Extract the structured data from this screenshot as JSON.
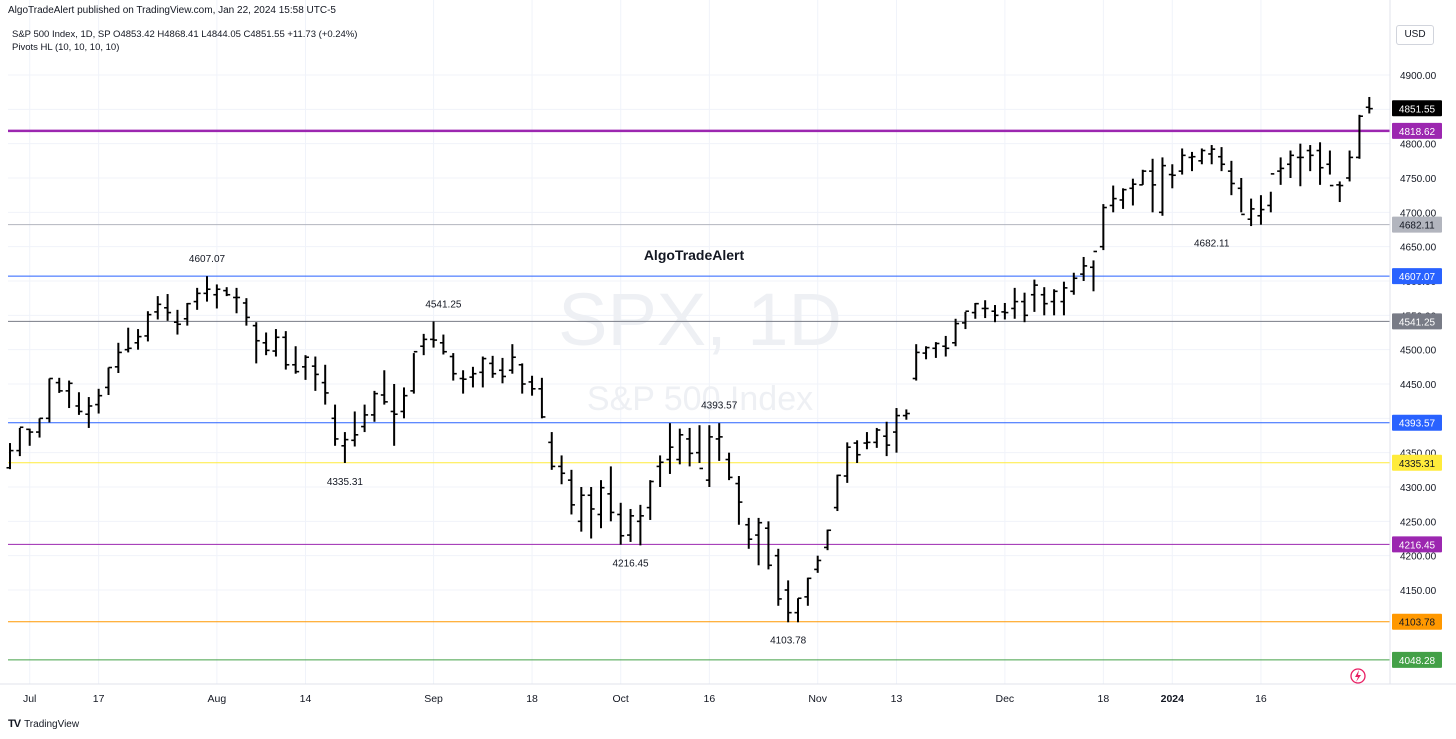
{
  "header": {
    "published": "AlgoTradeAlert published on TradingView.com, Jan 22, 2024 15:58 UTC-5"
  },
  "legend": {
    "symbol_line": "S&P 500 Index, 1D, SP  O4853.42  H4868.41  L4844.05  C4851.55  +11.73 (+0.24%)",
    "indicator_line": "Pivots HL (10, 10, 10, 10)"
  },
  "currency_button": "USD",
  "footer": {
    "brand": "TradingView"
  },
  "chart_data": {
    "type": "ohlc",
    "title": "AlgoTradeAlert",
    "watermark_symbol": "SPX, 1D",
    "watermark_name": "S&P 500 Index",
    "ylim": [
      4020,
      4960
    ],
    "y_ticks": [
      4150,
      4200,
      4250,
      4300,
      4350,
      4400,
      4450,
      4500,
      4550,
      4600,
      4650,
      4700,
      4750,
      4800,
      4850,
      4900
    ],
    "x_ticks": [
      {
        "label": "Jul",
        "index": 2
      },
      {
        "label": "17",
        "index": 9
      },
      {
        "label": "Aug",
        "index": 21
      },
      {
        "label": "14",
        "index": 30
      },
      {
        "label": "Sep",
        "index": 43
      },
      {
        "label": "18",
        "index": 53
      },
      {
        "label": "Oct",
        "index": 62
      },
      {
        "label": "16",
        "index": 71
      },
      {
        "label": "Nov",
        "index": 82
      },
      {
        "label": "13",
        "index": 90
      },
      {
        "label": "Dec",
        "index": 101
      },
      {
        "label": "18",
        "index": 111
      },
      {
        "label": "2024",
        "index": 118,
        "bold": true
      },
      {
        "label": "16",
        "index": 127
      }
    ],
    "levels": [
      {
        "value": 4818.62,
        "label": "4818.62",
        "color": "#9c27b0",
        "width": 2.5
      },
      {
        "value": 4682.11,
        "label": "4682.11",
        "color": "#b2b5be",
        "width": 1
      },
      {
        "value": 4607.07,
        "label": "4607.07",
        "color": "#2962ff",
        "width": 1
      },
      {
        "value": 4541.25,
        "label": "4541.25",
        "color": "#787b86",
        "width": 1
      },
      {
        "value": 4393.57,
        "label": "4393.57",
        "color": "#2962ff",
        "width": 1
      },
      {
        "value": 4335.31,
        "label": "4335.31",
        "color": "#ffeb3b",
        "width": 1
      },
      {
        "value": 4216.45,
        "label": "4216.45",
        "color": "#9c27b0",
        "width": 1
      },
      {
        "value": 4103.78,
        "label": "4103.78",
        "color": "#ff9800",
        "width": 1
      },
      {
        "value": 4048.28,
        "label": "4048.28",
        "color": "#43a047",
        "width": 1
      }
    ],
    "last_price": {
      "value": 4851.55,
      "label": "4851.55",
      "color": "#000000"
    },
    "pivot_labels": [
      {
        "label": "4607.07",
        "index": 20,
        "value": 4607.07,
        "pos": "above"
      },
      {
        "label": "4541.25",
        "index": 44,
        "value": 4541.25,
        "pos": "above"
      },
      {
        "label": "4335.31",
        "index": 34,
        "value": 4335.31,
        "pos": "below"
      },
      {
        "label": "4393.57",
        "index": 72,
        "value": 4393.57,
        "pos": "above"
      },
      {
        "label": "4216.45",
        "index": 63,
        "value": 4216.45,
        "pos": "below"
      },
      {
        "label": "4103.78",
        "index": 79,
        "value": 4103.78,
        "pos": "below"
      },
      {
        "label": "4682.11",
        "index": 122,
        "value": 4682.11,
        "pos": "below"
      }
    ],
    "colors": {
      "bar": "#000000",
      "grid": "#f0f3fa",
      "axis_text": "#131722"
    },
    "bars": [
      [
        4328,
        4364,
        4326,
        4353
      ],
      [
        4353,
        4386,
        4345,
        4387
      ],
      [
        4384,
        4385,
        4360,
        4380
      ],
      [
        4380,
        4400,
        4372,
        4400
      ],
      [
        4400,
        4458,
        4394,
        4458
      ],
      [
        4452,
        4459,
        4437,
        4440
      ],
      [
        4440,
        4455,
        4415,
        4451
      ],
      [
        4418,
        4438,
        4405,
        4410
      ],
      [
        4406,
        4431,
        4386,
        4418
      ],
      [
        4420,
        4443,
        4407,
        4433
      ],
      [
        4445,
        4474,
        4434,
        4474
      ],
      [
        4475,
        4510,
        4466,
        4496
      ],
      [
        4500,
        4532,
        4496,
        4502
      ],
      [
        4510,
        4530,
        4500,
        4519
      ],
      [
        4520,
        4556,
        4512,
        4551
      ],
      [
        4555,
        4578,
        4544,
        4566
      ],
      [
        4561,
        4581,
        4542,
        4554
      ],
      [
        4540,
        4558,
        4522,
        4537
      ],
      [
        4545,
        4568,
        4535,
        4567
      ],
      [
        4570,
        4590,
        4558,
        4582
      ],
      [
        4582,
        4607,
        4570,
        4588
      ],
      [
        4580,
        4595,
        4560,
        4588
      ],
      [
        4586,
        4591,
        4578,
        4580
      ],
      [
        4576,
        4590,
        4553,
        4576
      ],
      [
        4568,
        4575,
        4535,
        4547
      ],
      [
        4535,
        4540,
        4480,
        4513
      ],
      [
        4510,
        4525,
        4492,
        4499
      ],
      [
        4498,
        4530,
        4490,
        4518
      ],
      [
        4518,
        4527,
        4471,
        4478
      ],
      [
        4478,
        4505,
        4465,
        4468
      ],
      [
        4475,
        4492,
        4456,
        4489
      ],
      [
        4476,
        4490,
        4440,
        4464
      ],
      [
        4452,
        4478,
        4420,
        4437
      ],
      [
        4400,
        4420,
        4360,
        4370
      ],
      [
        4360,
        4380,
        4335,
        4369
      ],
      [
        4368,
        4410,
        4359,
        4376
      ],
      [
        4388,
        4420,
        4380,
        4405
      ],
      [
        4405,
        4440,
        4395,
        4436
      ],
      [
        4434,
        4470,
        4420,
        4424
      ],
      [
        4410,
        4450,
        4360,
        4406
      ],
      [
        4410,
        4445,
        4400,
        4433
      ],
      [
        4440,
        4495,
        4436,
        4497
      ],
      [
        4505,
        4523,
        4492,
        4515
      ],
      [
        4515,
        4541,
        4503,
        4514
      ],
      [
        4510,
        4522,
        4493,
        4497
      ],
      [
        4490,
        4495,
        4455,
        4465
      ],
      [
        4458,
        4470,
        4436,
        4457
      ],
      [
        4460,
        4475,
        4445,
        4465
      ],
      [
        4467,
        4490,
        4445,
        4487
      ],
      [
        4480,
        4491,
        4459,
        4465
      ],
      [
        4470,
        4488,
        4451,
        4461
      ],
      [
        4470,
        4508,
        4465,
        4489
      ],
      [
        4478,
        4480,
        4436,
        4450
      ],
      [
        4453,
        4462,
        4433,
        4443
      ],
      [
        4443,
        4459,
        4400,
        4402
      ],
      [
        4365,
        4380,
        4325,
        4330
      ],
      [
        4330,
        4346,
        4304,
        4320
      ],
      [
        4310,
        4325,
        4260,
        4274
      ],
      [
        4250,
        4300,
        4235,
        4288
      ],
      [
        4288,
        4300,
        4225,
        4268
      ],
      [
        4260,
        4310,
        4240,
        4299
      ],
      [
        4290,
        4330,
        4250,
        4263
      ],
      [
        4260,
        4277,
        4216,
        4229
      ],
      [
        4230,
        4268,
        4220,
        4258
      ],
      [
        4250,
        4274,
        4215,
        4258
      ],
      [
        4270,
        4310,
        4252,
        4308
      ],
      [
        4330,
        4346,
        4300,
        4336
      ],
      [
        4340,
        4393,
        4319,
        4358
      ],
      [
        4340,
        4385,
        4333,
        4376
      ],
      [
        4370,
        4386,
        4330,
        4349
      ],
      [
        4350,
        4390,
        4335,
        4327
      ],
      [
        4310,
        4390,
        4300,
        4373
      ],
      [
        4370,
        4393,
        4338,
        4373
      ],
      [
        4340,
        4350,
        4310,
        4314
      ],
      [
        4305,
        4316,
        4245,
        4278
      ],
      [
        4245,
        4255,
        4210,
        4224
      ],
      [
        4230,
        4255,
        4186,
        4248
      ],
      [
        4240,
        4250,
        4180,
        4186
      ],
      [
        4200,
        4210,
        4127,
        4137
      ],
      [
        4150,
        4164,
        4103,
        4117
      ],
      [
        4117,
        4138,
        4103,
        4138
      ],
      [
        4140,
        4168,
        4127,
        4167
      ],
      [
        4180,
        4200,
        4175,
        4193
      ],
      [
        4212,
        4238,
        4208,
        4237
      ],
      [
        4270,
        4318,
        4265,
        4317
      ],
      [
        4316,
        4365,
        4306,
        4358
      ],
      [
        4364,
        4368,
        4335,
        4347
      ],
      [
        4364,
        4380,
        4355,
        4365
      ],
      [
        4365,
        4386,
        4357,
        4383
      ],
      [
        4374,
        4395,
        4345,
        4361
      ],
      [
        4380,
        4415,
        4350,
        4404
      ],
      [
        4404,
        4413,
        4398,
        4407
      ],
      [
        4458,
        4508,
        4455,
        4496
      ],
      [
        4495,
        4505,
        4486,
        4503
      ],
      [
        4502,
        4511,
        4488,
        4509
      ],
      [
        4505,
        4520,
        4490,
        4502
      ],
      [
        4510,
        4545,
        4505,
        4538
      ],
      [
        4539,
        4555,
        4530,
        4556
      ],
      [
        4554,
        4568,
        4545,
        4567
      ],
      [
        4560,
        4572,
        4546,
        4560
      ],
      [
        4556,
        4565,
        4540,
        4550
      ],
      [
        4555,
        4568,
        4544,
        4554
      ],
      [
        4560,
        4590,
        4545,
        4570
      ],
      [
        4570,
        4583,
        4540,
        4550
      ],
      [
        4580,
        4602,
        4555,
        4594
      ],
      [
        4580,
        4591,
        4550,
        4567
      ],
      [
        4570,
        4588,
        4550,
        4585
      ],
      [
        4570,
        4599,
        4550,
        4590
      ],
      [
        4585,
        4612,
        4580,
        4604
      ],
      [
        4610,
        4635,
        4600,
        4622
      ],
      [
        4620,
        4630,
        4585,
        4643
      ],
      [
        4650,
        4712,
        4645,
        4707
      ],
      [
        4710,
        4739,
        4700,
        4720
      ],
      [
        4718,
        4735,
        4705,
        4733
      ],
      [
        4735,
        4749,
        4710,
        4741
      ],
      [
        4740,
        4762,
        4740,
        4760
      ],
      [
        4760,
        4778,
        4700,
        4740
      ],
      [
        4700,
        4780,
        4695,
        4768
      ],
      [
        4755,
        4770,
        4735,
        4754
      ],
      [
        4760,
        4793,
        4755,
        4783
      ],
      [
        4780,
        4788,
        4760,
        4781
      ],
      [
        4775,
        4793,
        4770,
        4790
      ],
      [
        4785,
        4798,
        4770,
        4792
      ],
      [
        4781,
        4795,
        4760,
        4770
      ],
      [
        4760,
        4775,
        4725,
        4742
      ],
      [
        4735,
        4750,
        4700,
        4697
      ],
      [
        4690,
        4720,
        4680,
        4705
      ],
      [
        4695,
        4725,
        4682,
        4704
      ],
      [
        4710,
        4730,
        4700,
        4756
      ],
      [
        4760,
        4780,
        4740,
        4764
      ],
      [
        4770,
        4790,
        4750,
        4783
      ],
      [
        4780,
        4800,
        4738,
        4780
      ],
      [
        4790,
        4798,
        4760,
        4783
      ],
      [
        4790,
        4802,
        4740,
        4765
      ],
      [
        4770,
        4790,
        4755,
        4739
      ],
      [
        4740,
        4745,
        4715,
        4739
      ],
      [
        4750,
        4790,
        4745,
        4780
      ],
      [
        4780,
        4842,
        4778,
        4840
      ],
      [
        4853,
        4868,
        4844,
        4851
      ]
    ]
  }
}
